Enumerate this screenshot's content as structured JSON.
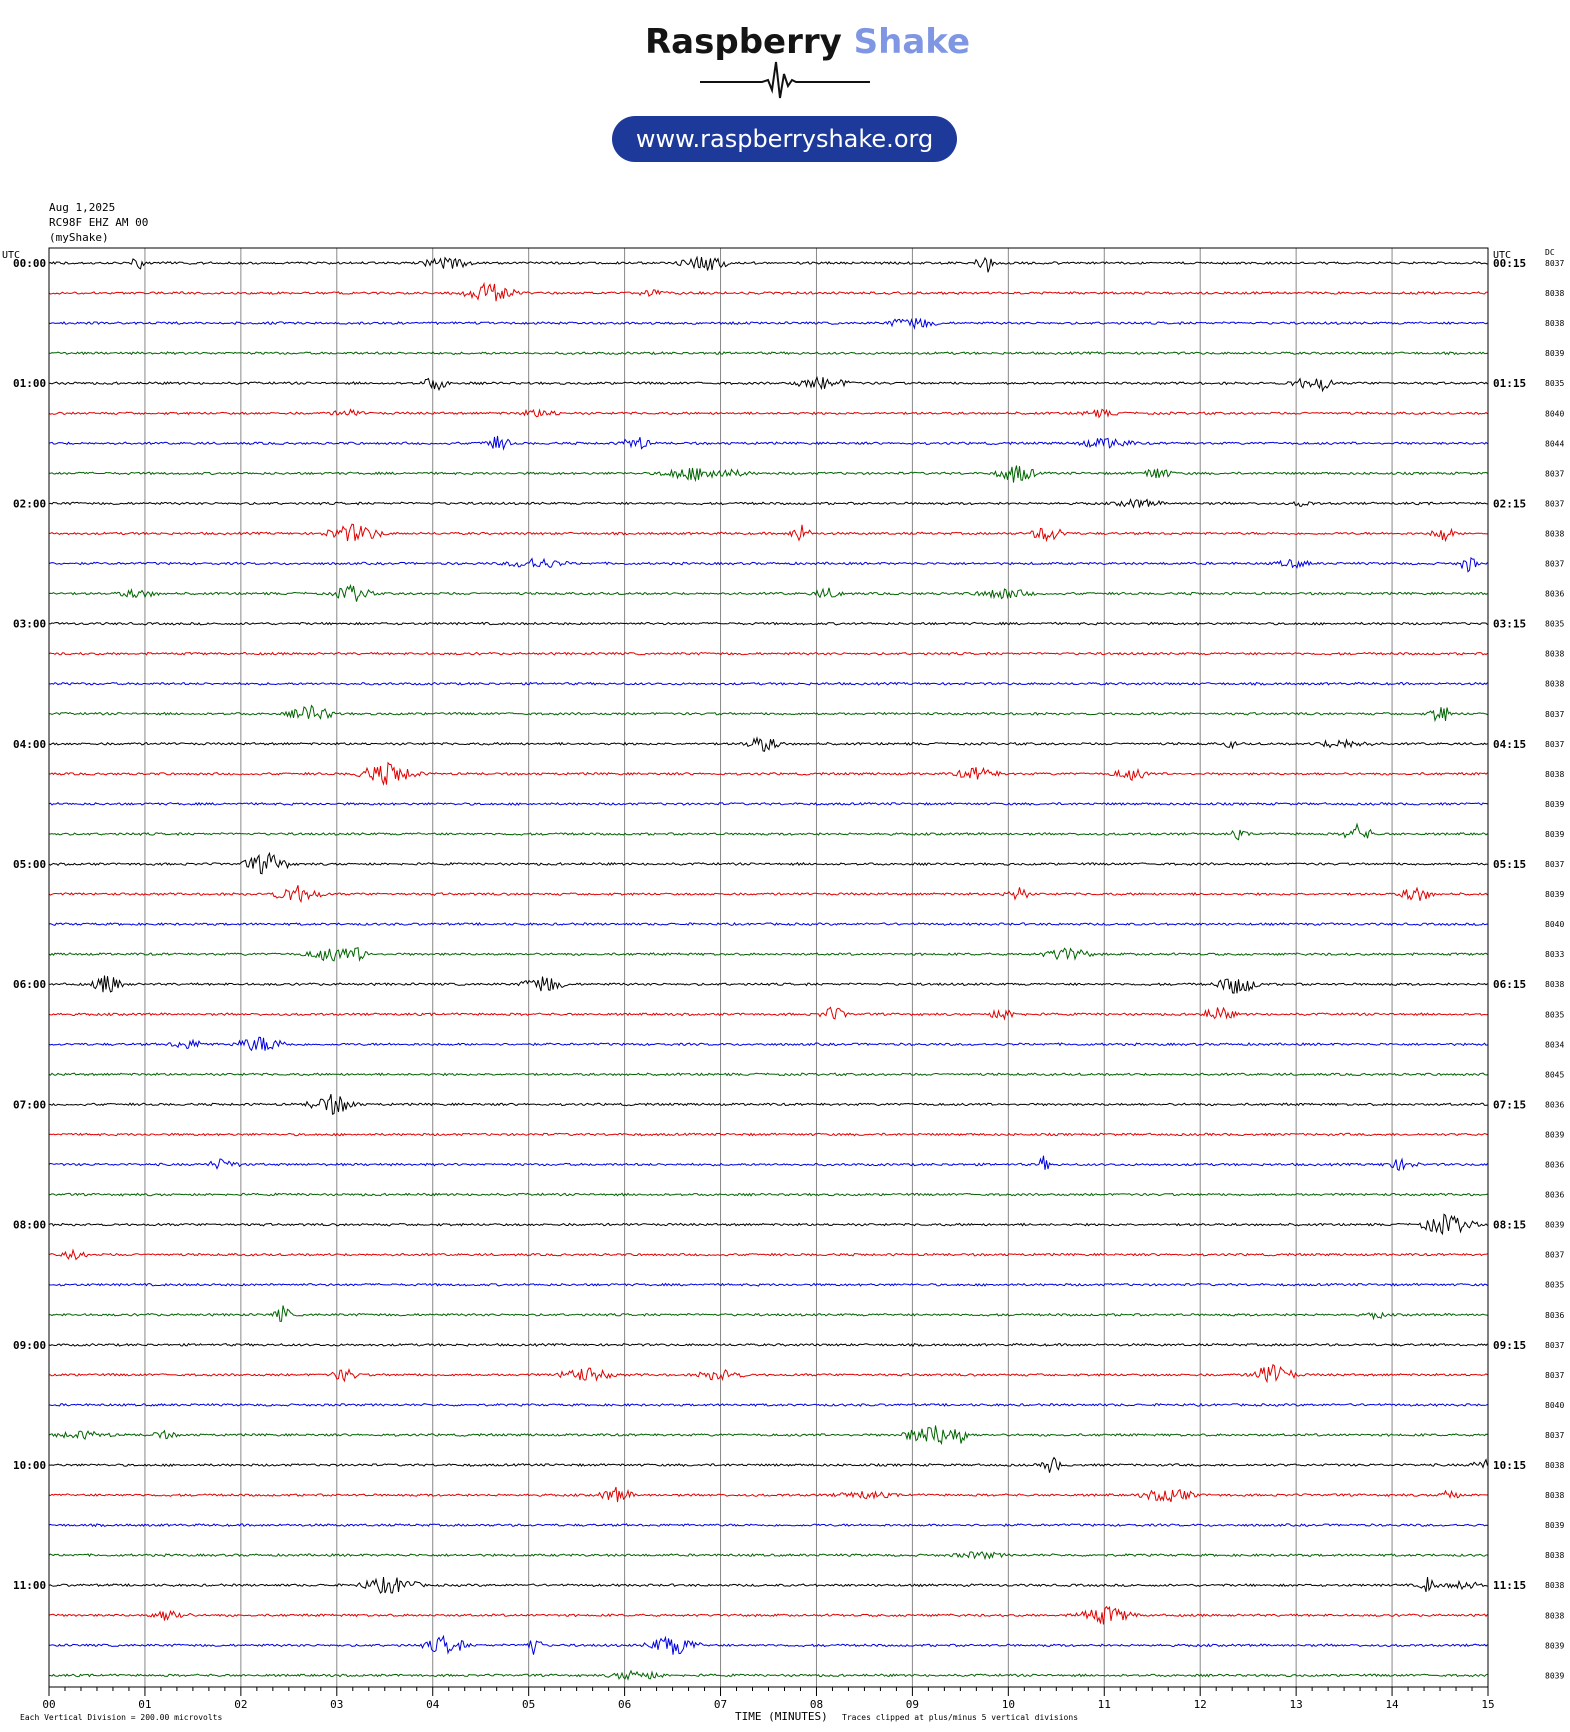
{
  "logo": {
    "name_part1": "Raspberry",
    "name_part2": "Shake",
    "url": "www.raspberryshake.org",
    "accent_color": "#7f96e3",
    "pill_color": "#1d3a9b"
  },
  "header": {
    "date": "Aug 1,2025",
    "station": "RC98F EHZ AM 00",
    "network": "(myShake)"
  },
  "chart_data": {
    "type": "line",
    "title": "",
    "xlabel": "TIME (MINUTES)",
    "x_ticks": [
      "00",
      "01",
      "02",
      "03",
      "04",
      "05",
      "06",
      "07",
      "08",
      "09",
      "10",
      "11",
      "12",
      "13",
      "14",
      "15"
    ],
    "xlim": [
      0,
      15
    ],
    "left_axis_title": "UTC",
    "right_axis_title": "UTC",
    "dc_label": "DC",
    "left_hour_labels": [
      "00:00",
      "01:00",
      "02:00",
      "03:00",
      "04:00",
      "05:00",
      "06:00",
      "07:00",
      "08:00",
      "09:00",
      "10:00",
      "11:00"
    ],
    "right_hour_labels": [
      "00:15",
      "01:15",
      "02:15",
      "03:15",
      "04:15",
      "05:15",
      "06:15",
      "07:15",
      "08:15",
      "09:15",
      "10:15",
      "11:15"
    ],
    "trace_colors": [
      "#000000",
      "#e00000",
      "#0000e0",
      "#006400"
    ],
    "dc_offsets": [
      "8037",
      "8038",
      "8038",
      "8039",
      "8035",
      "8040",
      "8044",
      "8037",
      "8037",
      "8038",
      "8037",
      "8036",
      "8035",
      "8038",
      "8038",
      "8037",
      "8037",
      "8038",
      "8039",
      "8039",
      "8037",
      "8039",
      "8040",
      "8033",
      "8038",
      "8035",
      "8034",
      "8045",
      "8036",
      "8039",
      "8036",
      "8036",
      "8039",
      "8037",
      "8035",
      "8036",
      "8037",
      "8037",
      "8040",
      "8037",
      "8038",
      "8038",
      "8039",
      "8038",
      "8038",
      "8038",
      "8039",
      "8039"
    ],
    "footer_left_label": "Each Vertical Division =  200.00 microvolts",
    "footer_right_label": "Traces clipped at plus/minus 5 vertical divisions"
  }
}
